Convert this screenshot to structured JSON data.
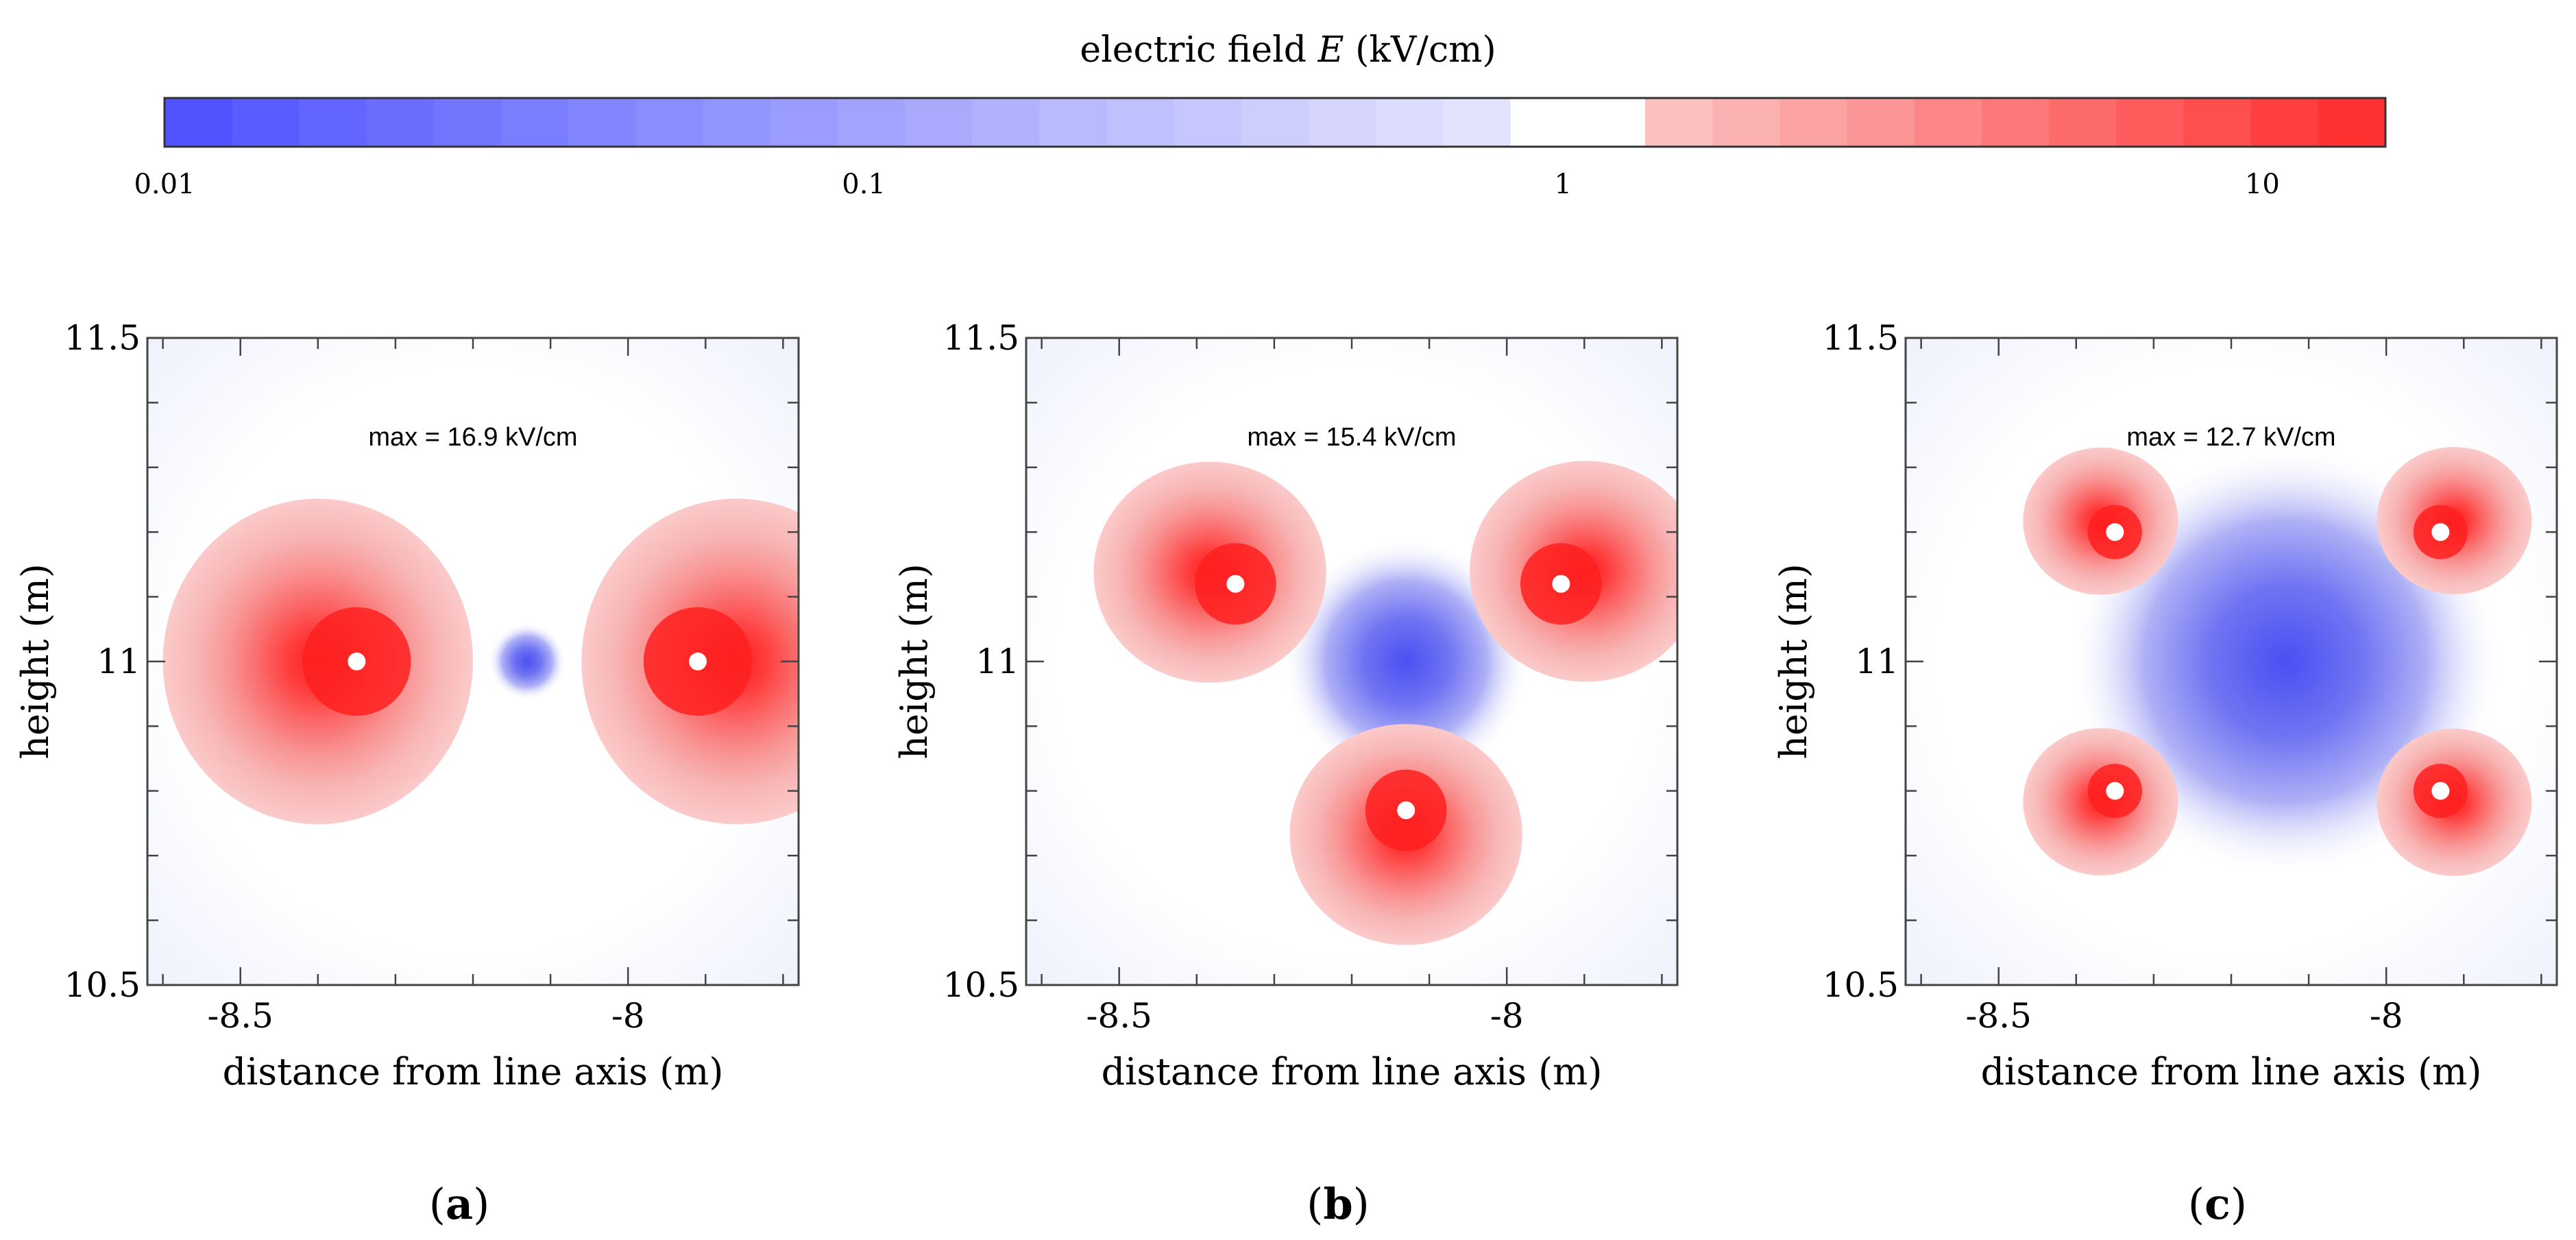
{
  "colorbar": {
    "label_prefix": "electric field ",
    "label_var": "E",
    "label_suffix": " (kV/cm)",
    "scale": "log",
    "range": [
      0.01,
      15
    ],
    "ticks": [
      {
        "value": 0.01,
        "label": "0.01"
      },
      {
        "value": 0.1,
        "label": "0.1"
      },
      {
        "value": 1,
        "label": "1"
      },
      {
        "value": 10,
        "label": "10"
      }
    ],
    "low_color": "#4a4dff",
    "mid_color": "#ffffff",
    "high_color": "#ff2a2a",
    "boundary_value": 1.25,
    "step_color_low": "#f3f3fe",
    "step_color_high": "#fbcaca"
  },
  "chart_data": [
    {
      "type": "heatmap",
      "panel_label": "a",
      "xlabel": "distance from line axis (m)",
      "ylabel": "height (m)",
      "xlim": [
        -8.62,
        -7.78
      ],
      "ylim": [
        10.5,
        11.5
      ],
      "xticks": [
        {
          "value": -8.5,
          "label": "-8.5"
        },
        {
          "value": -8,
          "label": "-8"
        }
      ],
      "yticks": [
        {
          "value": 10.5,
          "label": "10.5"
        },
        {
          "value": 11,
          "label": "11"
        },
        {
          "value": 11.5,
          "label": "11.5"
        }
      ],
      "annotation": "max = 16.9 kV/cm",
      "conductors": [
        {
          "x": -8.35,
          "y": 11.0
        },
        {
          "x": -7.91,
          "y": 11.0
        }
      ],
      "field_max": 16.9,
      "field_min_region": [
        {
          "x": -8.13,
          "y": 11.0
        }
      ]
    },
    {
      "type": "heatmap",
      "panel_label": "b",
      "xlabel": "distance from line axis (m)",
      "ylabel": "height (m)",
      "xlim": [
        -8.62,
        -7.78
      ],
      "ylim": [
        10.5,
        11.5
      ],
      "xticks": [
        {
          "value": -8.5,
          "label": "-8.5"
        },
        {
          "value": -8,
          "label": "-8"
        }
      ],
      "yticks": [
        {
          "value": 10.5,
          "label": "10.5"
        },
        {
          "value": 11,
          "label": "11"
        },
        {
          "value": 11.5,
          "label": "11.5"
        }
      ],
      "annotation": "max = 15.4 kV/cm",
      "conductors": [
        {
          "x": -8.35,
          "y": 11.12
        },
        {
          "x": -7.93,
          "y": 11.12
        },
        {
          "x": -8.13,
          "y": 10.77
        }
      ],
      "field_max": 15.4,
      "field_min_region": [
        {
          "x": -8.13,
          "y": 11.0
        }
      ]
    },
    {
      "type": "heatmap",
      "panel_label": "c",
      "xlabel": "distance from line axis (m)",
      "ylabel": "height (m)",
      "xlim": [
        -8.62,
        -7.78
      ],
      "ylim": [
        10.5,
        11.5
      ],
      "xticks": [
        {
          "value": -8.5,
          "label": "-8.5"
        },
        {
          "value": -8,
          "label": "-8"
        }
      ],
      "yticks": [
        {
          "value": 10.5,
          "label": "10.5"
        },
        {
          "value": 11,
          "label": "11"
        },
        {
          "value": 11.5,
          "label": "11.5"
        }
      ],
      "annotation": "max = 12.7 kV/cm",
      "conductors": [
        {
          "x": -8.35,
          "y": 11.2
        },
        {
          "x": -7.93,
          "y": 11.2
        },
        {
          "x": -8.35,
          "y": 10.8
        },
        {
          "x": -7.93,
          "y": 10.8
        }
      ],
      "field_max": 12.7,
      "field_min_region": [
        {
          "x": -8.13,
          "y": 11.0
        }
      ]
    }
  ]
}
